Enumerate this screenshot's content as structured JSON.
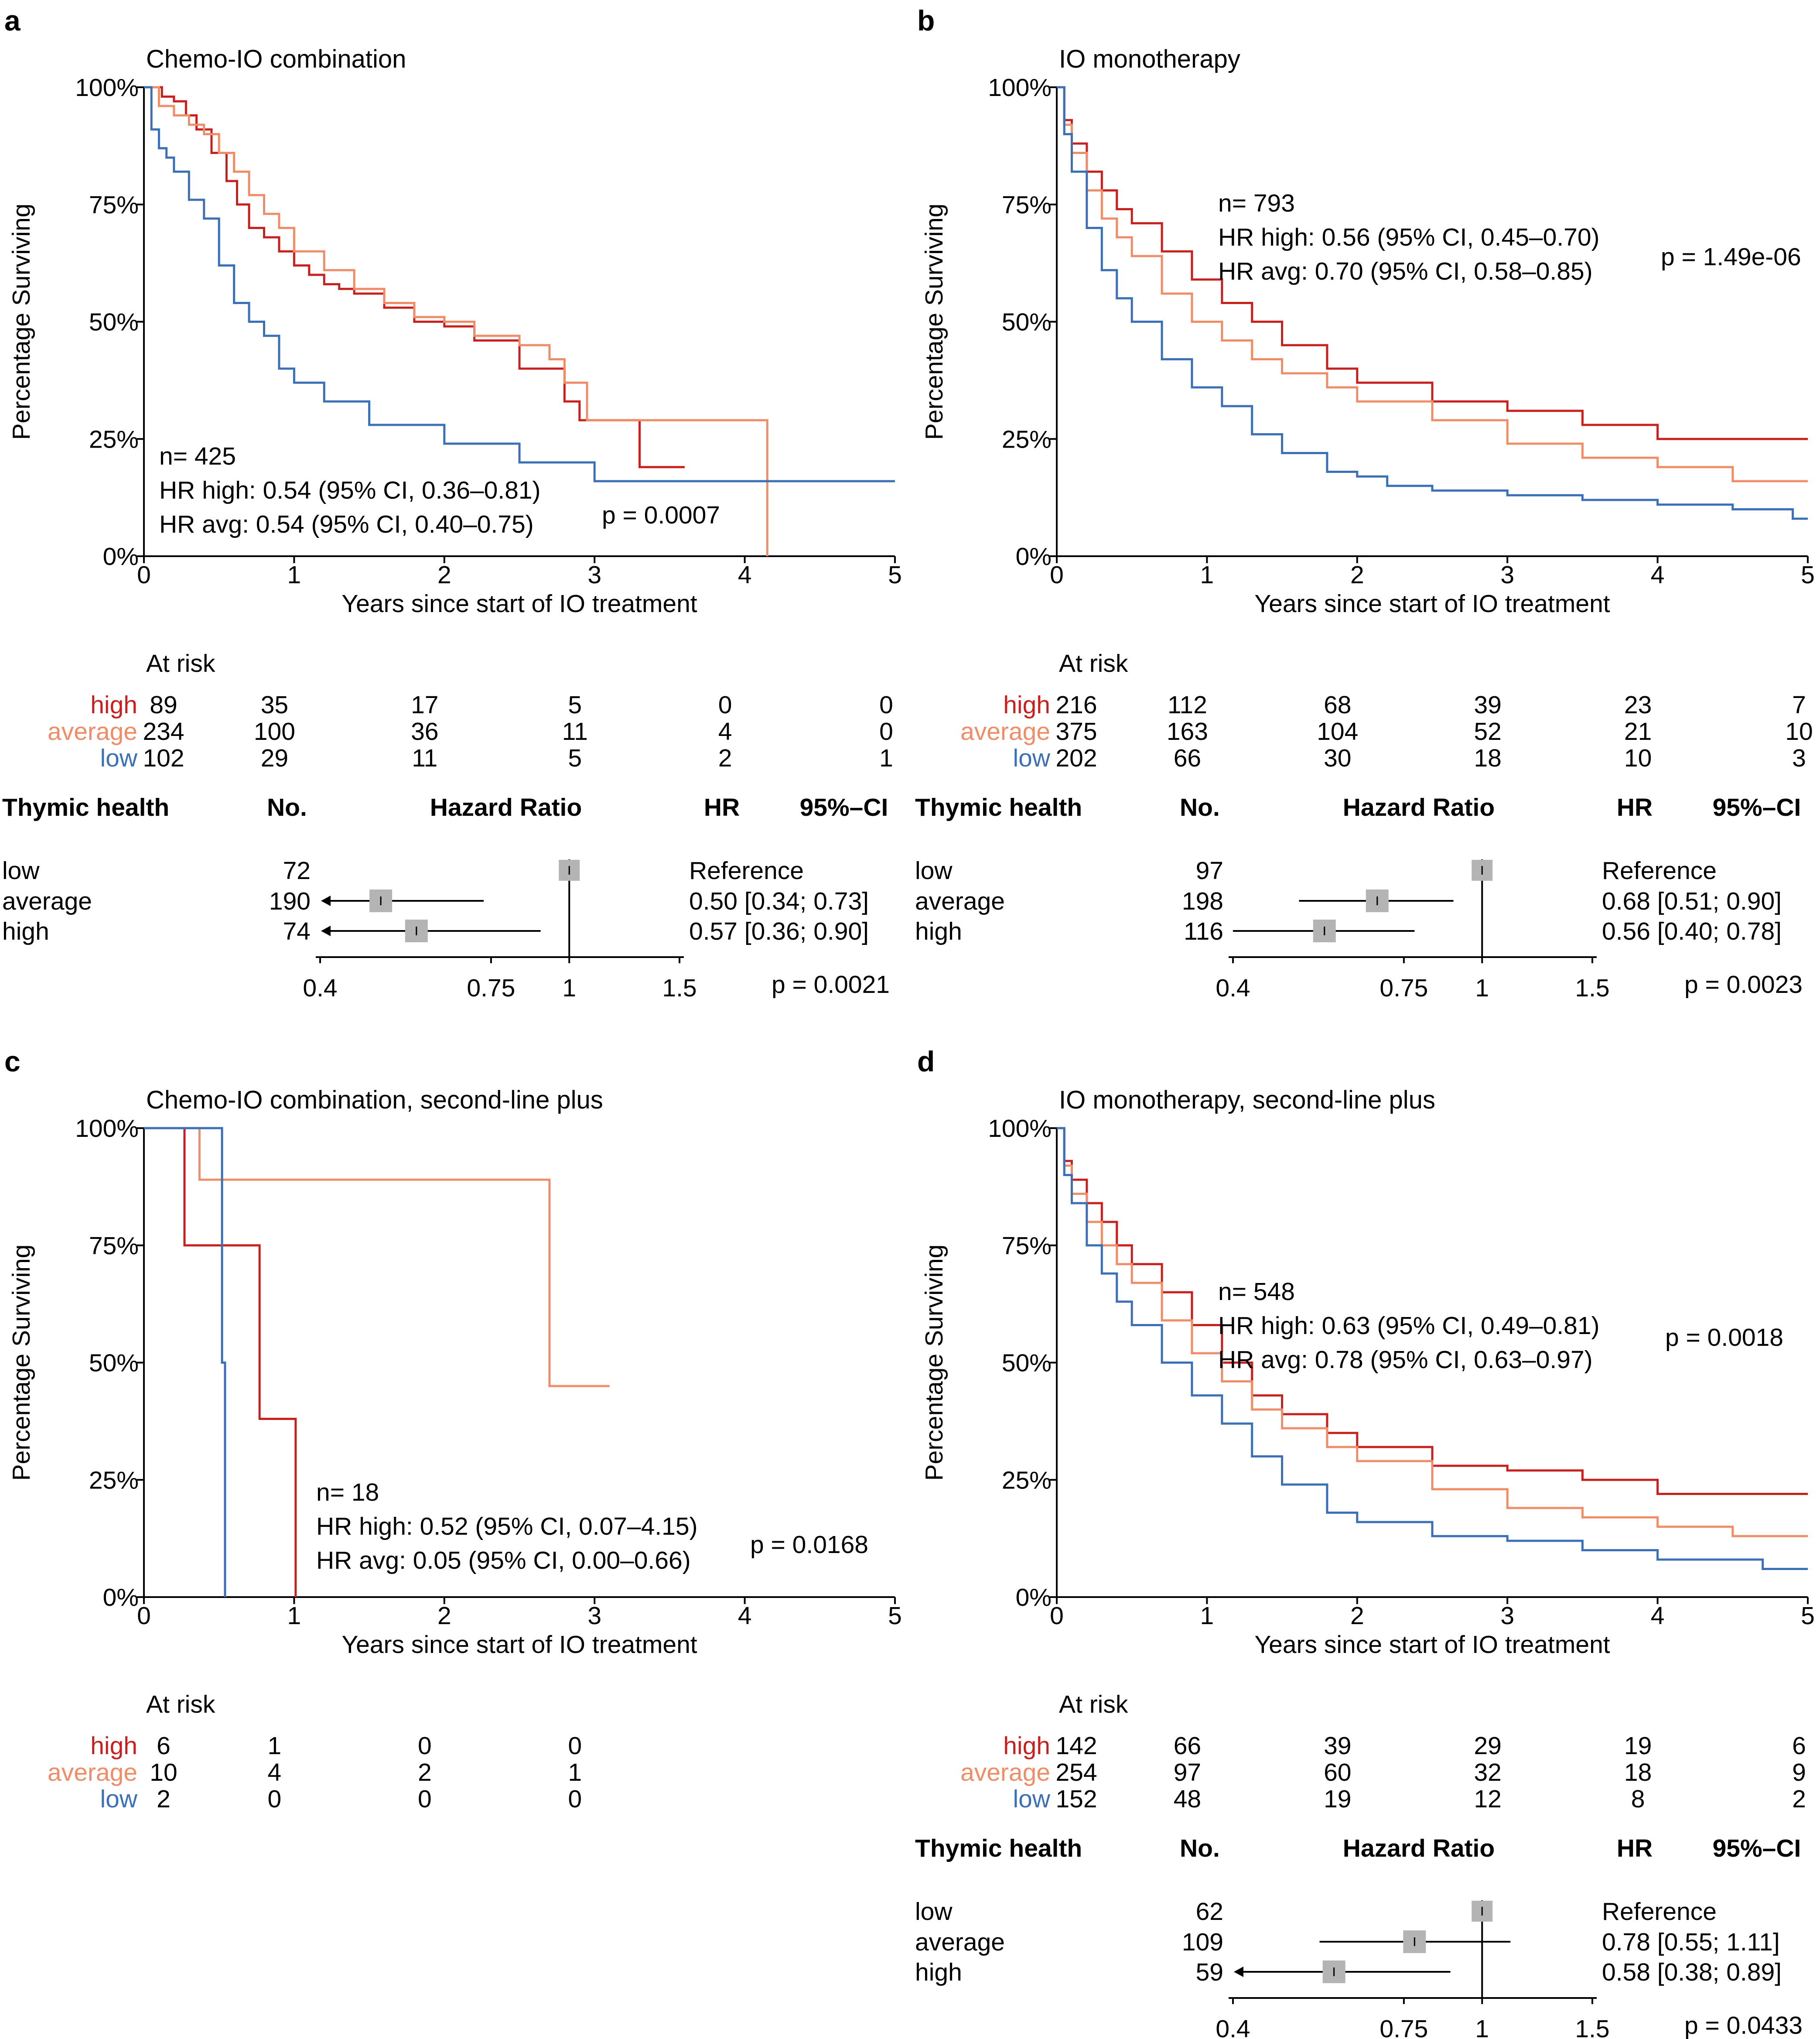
{
  "colors": {
    "high": "#c8201e",
    "average": "#ef8d68",
    "low": "#3b6fb6",
    "axis": "#000000",
    "box": "#b4b4b4"
  },
  "chart_data": [
    {
      "type": "line",
      "panel": "a",
      "title": "Chemo-IO combination",
      "xlabel": "Years since start of IO treatment",
      "ylabel": "Percentage Surviving",
      "xlim": [
        0,
        5
      ],
      "ylim": [
        0,
        100
      ],
      "xticks": [
        "0",
        "1",
        "2",
        "3",
        "4",
        "5"
      ],
      "yticks": [
        "0%",
        "25%",
        "50%",
        "75%",
        "100%"
      ],
      "stats": [
        "n= 425",
        "HR high: 0.54 (95% CI, 0.36–0.81)",
        "HR avg: 0.54 (95% CI, 0.40–0.75)"
      ],
      "pvalue": "p = 0.0007",
      "series": [
        {
          "name": "high",
          "x": [
            0,
            0.12,
            0.2,
            0.28,
            0.35,
            0.45,
            0.55,
            0.62,
            0.7,
            0.8,
            0.9,
            1.0,
            1.1,
            1.2,
            1.3,
            1.4,
            1.6,
            1.8,
            2.0,
            2.2,
            2.5,
            2.8,
            2.9,
            3.2,
            3.3,
            3.6
          ],
          "y": [
            100,
            98,
            97,
            94,
            91,
            86,
            80,
            75,
            70,
            68,
            65,
            62,
            60,
            58,
            57,
            56,
            53,
            50,
            49,
            46,
            40,
            33,
            29,
            29,
            19,
            19
          ]
        },
        {
          "name": "average",
          "x": [
            0,
            0.1,
            0.2,
            0.3,
            0.4,
            0.5,
            0.6,
            0.7,
            0.8,
            0.9,
            1.0,
            1.2,
            1.4,
            1.6,
            1.8,
            2.0,
            2.2,
            2.5,
            2.7,
            2.8,
            2.95,
            3.5,
            4.15,
            4.15
          ],
          "y": [
            100,
            96,
            94,
            92,
            90,
            86,
            82,
            77,
            73,
            70,
            65,
            61,
            57,
            54,
            51,
            50,
            47,
            45,
            42,
            37,
            29,
            29,
            29,
            0
          ]
        },
        {
          "name": "low",
          "x": [
            0,
            0.05,
            0.1,
            0.15,
            0.2,
            0.3,
            0.4,
            0.5,
            0.6,
            0.7,
            0.8,
            0.9,
            1.0,
            1.2,
            1.5,
            2.0,
            2.5,
            3.0,
            5.0
          ],
          "y": [
            100,
            91,
            87,
            85,
            82,
            76,
            72,
            62,
            54,
            50,
            47,
            40,
            37,
            33,
            28,
            24,
            20,
            16,
            16
          ]
        }
      ],
      "at_risk": {
        "title": "At risk",
        "groups": [
          {
            "label": "high",
            "values": [
              "89",
              "35",
              "17",
              "5",
              "0",
              "0"
            ]
          },
          {
            "label": "average",
            "values": [
              "234",
              "100",
              "36",
              "11",
              "4",
              "0"
            ]
          },
          {
            "label": "low",
            "values": [
              "102",
              "29",
              "11",
              "5",
              "2",
              "1"
            ]
          }
        ]
      },
      "forest": {
        "headers": [
          "Thymic health",
          "No.",
          "Hazard Ratio",
          "HR",
          "95%–CI"
        ],
        "rows": [
          {
            "label": "low",
            "n": "72",
            "hr": 1.0,
            "lo": null,
            "hi": null,
            "text": "Reference"
          },
          {
            "label": "average",
            "n": "190",
            "hr": 0.5,
            "lo": 0.34,
            "hi": 0.73,
            "text": "0.50 [0.34; 0.73]"
          },
          {
            "label": "high",
            "n": "74",
            "hr": 0.57,
            "lo": 0.36,
            "hi": 0.9,
            "text": "0.57 [0.36; 0.90]"
          }
        ],
        "ticks": [
          "0.4",
          "0.75",
          "1",
          "1.5"
        ],
        "pvalue": "p = 0.0021"
      }
    },
    {
      "type": "line",
      "panel": "b",
      "title": "IO monotherapy",
      "xlabel": "Years since start of IO treatment",
      "ylabel": "Percentage Surviving",
      "xlim": [
        0,
        5
      ],
      "ylim": [
        0,
        100
      ],
      "xticks": [
        "0",
        "1",
        "2",
        "3",
        "4",
        "5"
      ],
      "yticks": [
        "0%",
        "25%",
        "50%",
        "75%",
        "100%"
      ],
      "stats": [
        "n= 793",
        "HR high: 0.56 (95% CI, 0.45–0.70)",
        "HR avg: 0.70 (95% CI, 0.58–0.85)"
      ],
      "pvalue": "p = 1.49e-06",
      "series": [
        {
          "name": "high",
          "x": [
            0,
            0.05,
            0.1,
            0.2,
            0.3,
            0.4,
            0.5,
            0.7,
            0.9,
            1.1,
            1.3,
            1.5,
            1.8,
            2.0,
            2.5,
            3.0,
            3.5,
            4.0,
            5.0
          ],
          "y": [
            100,
            93,
            88,
            82,
            78,
            74,
            71,
            65,
            59,
            54,
            50,
            45,
            40,
            37,
            33,
            31,
            28,
            25,
            25
          ]
        },
        {
          "name": "average",
          "x": [
            0,
            0.05,
            0.1,
            0.2,
            0.3,
            0.4,
            0.5,
            0.7,
            0.9,
            1.1,
            1.3,
            1.5,
            1.8,
            2.0,
            2.5,
            3.0,
            3.5,
            4.0,
            4.5,
            5.0
          ],
          "y": [
            100,
            92,
            86,
            78,
            72,
            68,
            64,
            56,
            50,
            46,
            42,
            39,
            36,
            33,
            29,
            24,
            21,
            19,
            16,
            16
          ]
        },
        {
          "name": "low",
          "x": [
            0,
            0.05,
            0.1,
            0.2,
            0.3,
            0.4,
            0.5,
            0.7,
            0.9,
            1.1,
            1.3,
            1.5,
            1.8,
            2.0,
            2.2,
            2.5,
            3.0,
            3.5,
            4.0,
            4.5,
            4.9,
            5.0
          ],
          "y": [
            100,
            90,
            82,
            70,
            61,
            55,
            50,
            42,
            36,
            32,
            26,
            22,
            18,
            17,
            15,
            14,
            13,
            12,
            11,
            10,
            8,
            8
          ]
        }
      ],
      "at_risk": {
        "title": "At risk",
        "groups": [
          {
            "label": "high",
            "values": [
              "216",
              "112",
              "68",
              "39",
              "23",
              "7"
            ]
          },
          {
            "label": "average",
            "values": [
              "375",
              "163",
              "104",
              "52",
              "21",
              "10"
            ]
          },
          {
            "label": "low",
            "values": [
              "202",
              "66",
              "30",
              "18",
              "10",
              "3"
            ]
          }
        ]
      },
      "forest": {
        "headers": [
          "Thymic health",
          "No.",
          "Hazard Ratio",
          "HR",
          "95%–CI"
        ],
        "rows": [
          {
            "label": "low",
            "n": "97",
            "hr": 1.0,
            "lo": null,
            "hi": null,
            "text": "Reference"
          },
          {
            "label": "average",
            "n": "198",
            "hr": 0.68,
            "lo": 0.51,
            "hi": 0.9,
            "text": "0.68 [0.51; 0.90]"
          },
          {
            "label": "high",
            "n": "116",
            "hr": 0.56,
            "lo": 0.4,
            "hi": 0.78,
            "text": "0.56 [0.40; 0.78]"
          }
        ],
        "ticks": [
          "0.4",
          "0.75",
          "1",
          "1.5"
        ],
        "pvalue": "p = 0.0023"
      }
    },
    {
      "type": "line",
      "panel": "c",
      "title": "Chemo-IO combination, second-line plus",
      "xlabel": "Years since start of IO treatment",
      "ylabel": "Percentage Surviving",
      "xlim": [
        0,
        5
      ],
      "ylim": [
        0,
        100
      ],
      "xticks": [
        "0",
        "1",
        "2",
        "3",
        "4",
        "5"
      ],
      "yticks": [
        "0%",
        "25%",
        "50%",
        "75%",
        "100%"
      ],
      "stats": [
        "n= 18",
        "HR high: 0.52 (95% CI, 0.07–4.15)",
        "HR avg: 0.05 (95% CI, 0.00–0.66)"
      ],
      "pvalue": "p = 0.0168",
      "series": [
        {
          "name": "high",
          "x": [
            0,
            0.27,
            0.27,
            0.77,
            0.77,
            1.01,
            1.01
          ],
          "y": [
            100,
            100,
            75,
            75,
            38,
            38,
            0
          ]
        },
        {
          "name": "average",
          "x": [
            0,
            0.37,
            0.37,
            2.7,
            2.7,
            3.1
          ],
          "y": [
            100,
            100,
            89,
            89,
            45,
            45
          ]
        },
        {
          "name": "low",
          "x": [
            0,
            0.52,
            0.52,
            0.54,
            0.54
          ],
          "y": [
            100,
            100,
            50,
            50,
            0
          ]
        }
      ],
      "at_risk": {
        "title": "At risk",
        "groups": [
          {
            "label": "high",
            "values": [
              "6",
              "1",
              "0",
              "0"
            ]
          },
          {
            "label": "average",
            "values": [
              "10",
              "4",
              "2",
              "1"
            ]
          },
          {
            "label": "low",
            "values": [
              "2",
              "0",
              "0",
              "0"
            ]
          }
        ]
      },
      "forest": null
    },
    {
      "type": "line",
      "panel": "d",
      "title": "IO monotherapy, second-line plus",
      "xlabel": "Years since start of IO treatment",
      "ylabel": "Percentage Surviving",
      "xlim": [
        0,
        5
      ],
      "ylim": [
        0,
        100
      ],
      "xticks": [
        "0",
        "1",
        "2",
        "3",
        "4",
        "5"
      ],
      "yticks": [
        "0%",
        "25%",
        "50%",
        "75%",
        "100%"
      ],
      "stats": [
        "n= 548",
        "HR high: 0.63 (95% CI, 0.49–0.81)",
        "HR avg: 0.78 (95% CI, 0.63–0.97)"
      ],
      "pvalue": "p = 0.0018",
      "series": [
        {
          "name": "high",
          "x": [
            0,
            0.05,
            0.1,
            0.2,
            0.3,
            0.4,
            0.5,
            0.7,
            0.9,
            1.1,
            1.3,
            1.5,
            1.8,
            2.0,
            2.5,
            3.0,
            3.5,
            4.0,
            4.3,
            5.0
          ],
          "y": [
            100,
            93,
            89,
            84,
            80,
            75,
            71,
            65,
            58,
            50,
            43,
            39,
            35,
            32,
            28,
            27,
            25,
            22,
            22,
            22
          ]
        },
        {
          "name": "average",
          "x": [
            0,
            0.05,
            0.1,
            0.2,
            0.3,
            0.4,
            0.5,
            0.7,
            0.9,
            1.1,
            1.3,
            1.5,
            1.8,
            2.0,
            2.5,
            3.0,
            3.5,
            4.0,
            4.5,
            5.0
          ],
          "y": [
            100,
            92,
            86,
            80,
            75,
            71,
            67,
            59,
            52,
            46,
            40,
            36,
            32,
            29,
            23,
            19,
            17,
            15,
            13,
            13
          ]
        },
        {
          "name": "low",
          "x": [
            0,
            0.05,
            0.1,
            0.2,
            0.3,
            0.4,
            0.5,
            0.7,
            0.9,
            1.1,
            1.3,
            1.5,
            1.8,
            2.0,
            2.5,
            3.0,
            3.5,
            4.0,
            4.7,
            5.0
          ],
          "y": [
            100,
            90,
            84,
            75,
            69,
            63,
            58,
            50,
            43,
            37,
            30,
            24,
            18,
            16,
            13,
            12,
            10,
            8,
            6,
            6
          ]
        }
      ],
      "at_risk": {
        "title": "At risk",
        "groups": [
          {
            "label": "high",
            "values": [
              "142",
              "66",
              "39",
              "29",
              "19",
              "6"
            ]
          },
          {
            "label": "average",
            "values": [
              "254",
              "97",
              "60",
              "32",
              "18",
              "9"
            ]
          },
          {
            "label": "low",
            "values": [
              "152",
              "48",
              "19",
              "12",
              "8",
              "2"
            ]
          }
        ]
      },
      "forest": {
        "headers": [
          "Thymic health",
          "No.",
          "Hazard Ratio",
          "HR",
          "95%–CI"
        ],
        "rows": [
          {
            "label": "low",
            "n": "62",
            "hr": 1.0,
            "lo": null,
            "hi": null,
            "text": "Reference"
          },
          {
            "label": "average",
            "n": "109",
            "hr": 0.78,
            "lo": 0.55,
            "hi": 1.11,
            "text": "0.78 [0.55; 1.11]"
          },
          {
            "label": "high",
            "n": "59",
            "hr": 0.58,
            "lo": 0.38,
            "hi": 0.89,
            "text": "0.58 [0.38; 0.89]"
          }
        ],
        "ticks": [
          "0.4",
          "0.75",
          "1",
          "1.5"
        ],
        "pvalue": "p = 0.0433"
      }
    }
  ]
}
